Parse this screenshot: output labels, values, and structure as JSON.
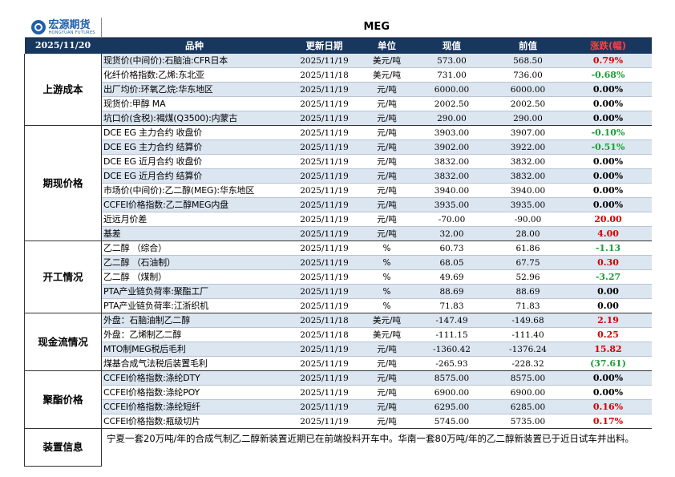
{
  "logo": {
    "cn": "宏源期货",
    "en": "HONGYUAN FUTURES"
  },
  "title": "MEG",
  "header": {
    "date": "2025/11/20",
    "col_name": "品种",
    "col_update": "更新日期",
    "col_unit": "单位",
    "col_current": "现值",
    "col_prev": "前值",
    "col_change": "涨跌(幅)"
  },
  "groups": [
    {
      "label": "上游成本",
      "rows": [
        {
          "name": "现货价(中间价):石脑油:CFR日本",
          "date": "2025/11/19",
          "unit": "美元/吨",
          "current": "573.00",
          "prev": "568.50",
          "change": "0.79%",
          "trend": "up"
        },
        {
          "name": "化纤价格指数:乙烯:东北亚",
          "date": "2025/11/18",
          "unit": "美元/吨",
          "current": "731.00",
          "prev": "736.00",
          "change": "-0.68%",
          "trend": "down"
        },
        {
          "name": "出厂均价:环氧乙烷:华东地区",
          "date": "2025/11/19",
          "unit": "元/吨",
          "current": "6000.00",
          "prev": "6000.00",
          "change": "0.00%",
          "trend": "flat"
        },
        {
          "name": "现货价:甲醇 MA",
          "date": "2025/11/19",
          "unit": "元/吨",
          "current": "2002.50",
          "prev": "2002.50",
          "change": "0.00%",
          "trend": "flat"
        },
        {
          "name": "坑口价(含税):褐煤(Q3500):内蒙古",
          "date": "2025/11/19",
          "unit": "元/吨",
          "current": "290.00",
          "prev": "290.00",
          "change": "0.00%",
          "trend": "flat"
        }
      ]
    },
    {
      "label": "期现价格",
      "rows": [
        {
          "name": "DCE EG 主力合约 收盘价",
          "date": "2025/11/19",
          "unit": "元/吨",
          "current": "3903.00",
          "prev": "3907.00",
          "change": "-0.10%",
          "trend": "down"
        },
        {
          "name": "DCE EG 主力合约 结算价",
          "date": "2025/11/19",
          "unit": "元/吨",
          "current": "3902.00",
          "prev": "3922.00",
          "change": "-0.51%",
          "trend": "down"
        },
        {
          "name": "DCE EG 近月合约 收盘价",
          "date": "2025/11/19",
          "unit": "元/吨",
          "current": "3832.00",
          "prev": "3832.00",
          "change": "0.00%",
          "trend": "flat"
        },
        {
          "name": "DCE EG 近月合约 结算价",
          "date": "2025/11/19",
          "unit": "元/吨",
          "current": "3832.00",
          "prev": "3832.00",
          "change": "0.00%",
          "trend": "flat"
        },
        {
          "name": "市场价(中间价):乙二醇(MEG):华东地区",
          "date": "2025/11/19",
          "unit": "元/吨",
          "current": "3940.00",
          "prev": "3940.00",
          "change": "0.00%",
          "trend": "flat"
        },
        {
          "name": "CCFEI价格指数:乙二醇MEG内盘",
          "date": "2025/11/19",
          "unit": "元/吨",
          "current": "3935.00",
          "prev": "3935.00",
          "change": "0.00%",
          "trend": "flat"
        },
        {
          "name": "近远月价差",
          "date": "2025/11/19",
          "unit": "元/吨",
          "current": "-70.00",
          "prev": "-90.00",
          "change": "20.00",
          "trend": "up"
        },
        {
          "name": "基差",
          "date": "2025/11/19",
          "unit": "元/吨",
          "current": "32.00",
          "prev": "28.00",
          "change": "4.00",
          "trend": "up"
        }
      ]
    },
    {
      "label": "开工情况",
      "rows": [
        {
          "name": "乙二醇 （综合）",
          "date": "2025/11/19",
          "unit": "%",
          "current": "60.73",
          "prev": "61.86",
          "change": "-1.13",
          "trend": "down"
        },
        {
          "name": "乙二醇 （石油制）",
          "date": "2025/11/19",
          "unit": "%",
          "current": "68.05",
          "prev": "67.75",
          "change": "0.30",
          "trend": "up"
        },
        {
          "name": "乙二醇 （煤制）",
          "date": "2025/11/19",
          "unit": "%",
          "current": "49.69",
          "prev": "52.96",
          "change": "-3.27",
          "trend": "down"
        },
        {
          "name": "PTA产业链负荷率:聚酯工厂",
          "date": "2025/11/19",
          "unit": "%",
          "current": "88.69",
          "prev": "88.69",
          "change": "0.00",
          "trend": "flat"
        },
        {
          "name": "PTA产业链负荷率:江浙织机",
          "date": "2025/11/19",
          "unit": "%",
          "current": "71.83",
          "prev": "71.83",
          "change": "0.00",
          "trend": "flat"
        }
      ]
    },
    {
      "label": "现金流情况",
      "rows": [
        {
          "name": "外盘：石脑油制乙二醇",
          "date": "2025/11/18",
          "unit": "美元/吨",
          "current": "-147.49",
          "prev": "-149.68",
          "change": "2.19",
          "trend": "up"
        },
        {
          "name": "外盘：乙烯制乙二醇",
          "date": "2025/11/18",
          "unit": "美元/吨",
          "current": "-111.15",
          "prev": "-111.40",
          "change": "0.25",
          "trend": "up"
        },
        {
          "name": "MTO制MEG税后毛利",
          "date": "2025/11/19",
          "unit": "元/吨",
          "current": "-1360.42",
          "prev": "-1376.24",
          "change": "15.82",
          "trend": "up"
        },
        {
          "name": "煤基合成气法税后装置毛利",
          "date": "2025/11/19",
          "unit": "元/吨",
          "current": "-265.93",
          "prev": "-228.32",
          "change": "(37.61)",
          "trend": "down"
        }
      ]
    },
    {
      "label": "聚酯价格",
      "rows": [
        {
          "name": "CCFEI价格指数:涤纶DTY",
          "date": "2025/11/19",
          "unit": "元/吨",
          "current": "8575.00",
          "prev": "8575.00",
          "change": "0.00%",
          "trend": "flat"
        },
        {
          "name": "CCFEI价格指数:涤纶POY",
          "date": "2025/11/19",
          "unit": "元/吨",
          "current": "6900.00",
          "prev": "6900.00",
          "change": "0.00%",
          "trend": "flat"
        },
        {
          "name": "CCFEI价格指数:涤纶短纤",
          "date": "2025/11/19",
          "unit": "元/吨",
          "current": "6295.00",
          "prev": "6285.00",
          "change": "0.16%",
          "trend": "up"
        },
        {
          "name": "CCFEI价格指数:瓶级切片",
          "date": "2025/11/19",
          "unit": "元/吨",
          "current": "5745.00",
          "prev": "5735.00",
          "change": "0.17%",
          "trend": "up"
        }
      ]
    }
  ],
  "device": {
    "label": "装置信息",
    "text": "宁夏一套20万吨/年的合成气制乙二醇新装置近期已在前端投料开车中。华南一套80万吨/年的乙二醇新装置已于近日试车并出料。"
  },
  "colors": {
    "header_bg": "#17375e",
    "shade": "#dce6f1",
    "up": "#d40000",
    "down": "#1b9e35",
    "brand": "#1f5fa8"
  }
}
